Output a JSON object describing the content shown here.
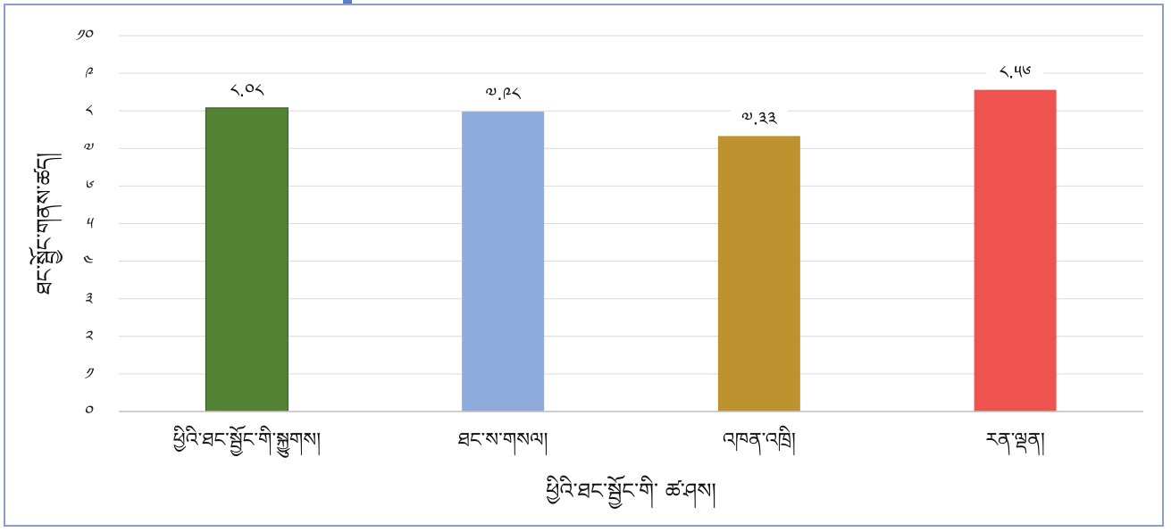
{
  "chart_data": {
    "type": "bar",
    "categories": [
      "ཕྱིའི་ཐང་སྦྱོང་གི་སྐྱུགས།",
      "ཐང་ས་གསལ།",
      "འཁན་འཁྲི།",
      "རན་ལྡན།"
    ],
    "values": [
      8.08,
      7.98,
      7.33,
      8.56
    ],
    "data_labels": [
      "༨.༠༨",
      "༧.༩༨",
      "༧.༣༣",
      "༨.༥༦"
    ],
    "colors": [
      "#548235",
      "#8faadc",
      "#bf9230",
      "#ef5350"
    ],
    "ylim": [
      0,
      10
    ],
    "yticks": [
      0,
      1,
      2,
      3,
      4,
      5,
      6,
      7,
      8,
      9,
      10
    ],
    "ytick_labels": [
      "༠",
      "༡",
      "༢",
      "༣",
      "༤",
      "༥",
      "༦",
      "༧",
      "༨",
      "༩",
      "༡༠"
    ],
    "xlabel": "ཕྱིའི་ཐང་སྦྱོང་གི་ ཚ་ཤས།",
    "ylabel": "ཐང་སྦྱོང་གནས་ཚད།",
    "grid": true,
    "legend": "none"
  }
}
